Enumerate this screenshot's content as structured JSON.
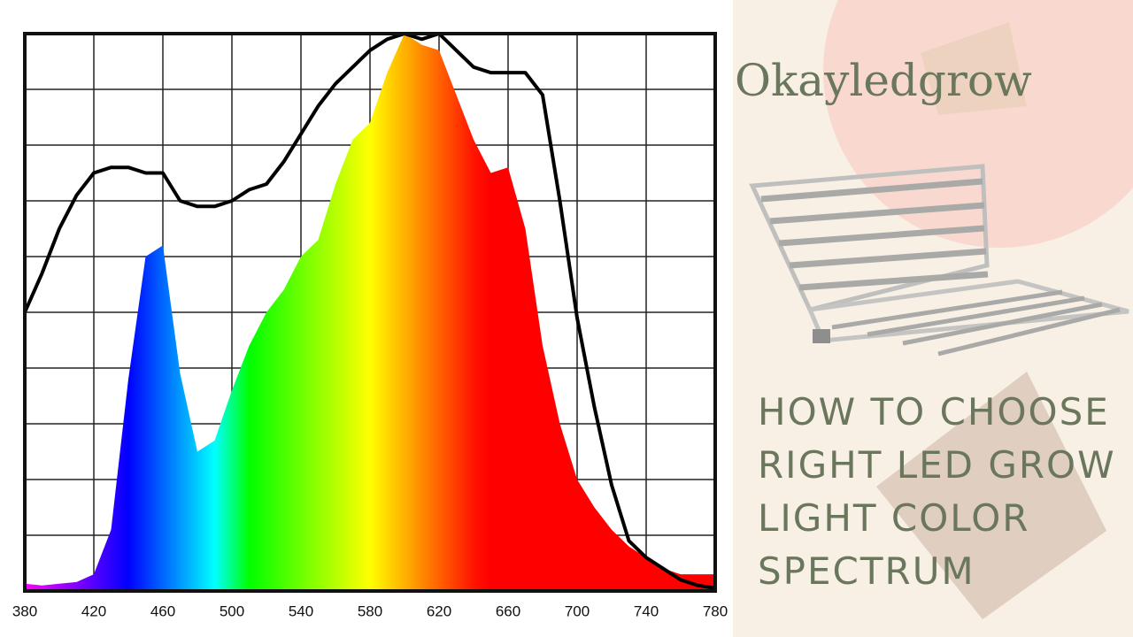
{
  "chart_data": {
    "type": "line",
    "x": [
      380,
      390,
      400,
      410,
      420,
      430,
      440,
      450,
      460,
      470,
      480,
      490,
      500,
      510,
      520,
      530,
      540,
      550,
      560,
      570,
      580,
      590,
      600,
      610,
      620,
      630,
      640,
      650,
      660,
      670,
      680,
      690,
      700,
      710,
      720,
      730,
      740,
      750,
      760,
      770,
      780
    ],
    "series": [
      {
        "area": true,
        "values": [
          1.3,
          1,
          1.3,
          1.6,
          3,
          11,
          38,
          60,
          62,
          39,
          25,
          27,
          36,
          44,
          50,
          54,
          60,
          63,
          73,
          81,
          84,
          93,
          100,
          98,
          97,
          89,
          81,
          75,
          76,
          65,
          44,
          30,
          20,
          15,
          11,
          8,
          6,
          4,
          3,
          3,
          3
        ]
      },
      {
        "color": "#000000",
        "values": [
          50,
          57,
          65,
          71,
          75,
          76,
          76,
          75,
          75,
          70,
          69,
          69,
          70,
          72,
          73,
          77,
          82,
          87,
          91,
          94,
          97,
          99,
          100,
          99,
          100,
          97,
          94,
          93,
          93,
          93,
          89,
          70,
          49,
          33,
          19,
          9,
          6,
          4,
          2,
          1,
          0.5
        ]
      }
    ],
    "xlim": [
      380,
      780
    ],
    "xticks": [
      380,
      420,
      460,
      500,
      540,
      580,
      620,
      660,
      700,
      740,
      780
    ],
    "ylim": [
      0,
      100
    ],
    "yticks": [
      0,
      10,
      20,
      30,
      40,
      50,
      60,
      70,
      80,
      90,
      100
    ],
    "grid": true
  },
  "brand": "Okayledgrow",
  "headline": [
    "HOW TO CHOOSE",
    "RIGHT LED GROW",
    "LIGHT COLOR",
    "SPECTRUM"
  ]
}
